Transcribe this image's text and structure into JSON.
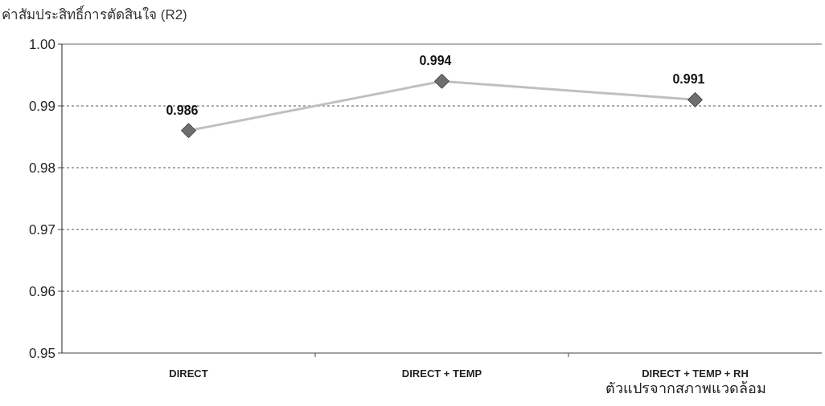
{
  "chart_data": {
    "type": "line",
    "ylabel": "ค่าสัมประสิทธิ์การตัดสินใจ (R2)",
    "xlabel": "ตัวแปรจากสภาพแวดล้อม",
    "categories": [
      "DIRECT",
      "DIRECT + TEMP",
      "DIRECT + TEMP + RH"
    ],
    "series": [
      {
        "color": "#c0c0c0",
        "values": [
          0.986,
          0.994,
          0.991
        ]
      }
    ],
    "ylim": [
      0.95,
      1.0
    ],
    "yticks": [
      0.95,
      0.96,
      0.97,
      0.98,
      0.99,
      {
        "value": 1.0,
        "label": "1.00"
      }
    ],
    "grid": "y",
    "marker": "diamond",
    "line_style": "solid",
    "data_labels": true
  }
}
